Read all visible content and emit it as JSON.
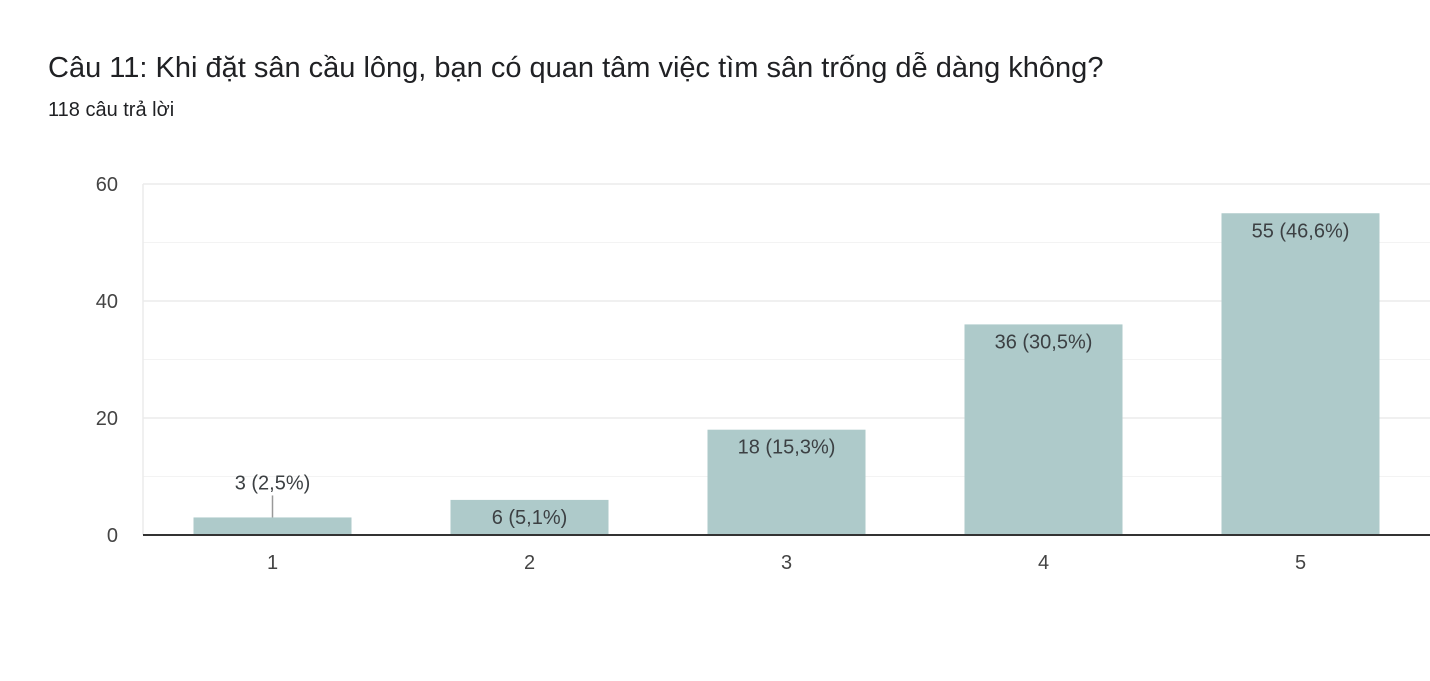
{
  "question": {
    "title": "Câu 11:  Khi đặt sân cầu lông, bạn có quan tâm việc tìm sân trống dễ dàng không?",
    "responses": "118 câu trả lời"
  },
  "colors": {
    "bar": "#aecaca",
    "gridline": "#ebebeb",
    "axis": "#333333"
  },
  "chart_data": {
    "type": "bar",
    "categories": [
      "1",
      "2",
      "3",
      "4",
      "5"
    ],
    "values": [
      3,
      6,
      18,
      36,
      55
    ],
    "data_labels": [
      "3 (2,5%)",
      "6 (5,1%)",
      "18 (15,3%)",
      "36 (30,5%)",
      "55 (46,6%)"
    ],
    "ylim": [
      0,
      60
    ],
    "yticks": [
      0,
      20,
      40,
      60
    ],
    "minor_gridlines": [
      10,
      30,
      50
    ],
    "grid": true,
    "legend": "none"
  }
}
